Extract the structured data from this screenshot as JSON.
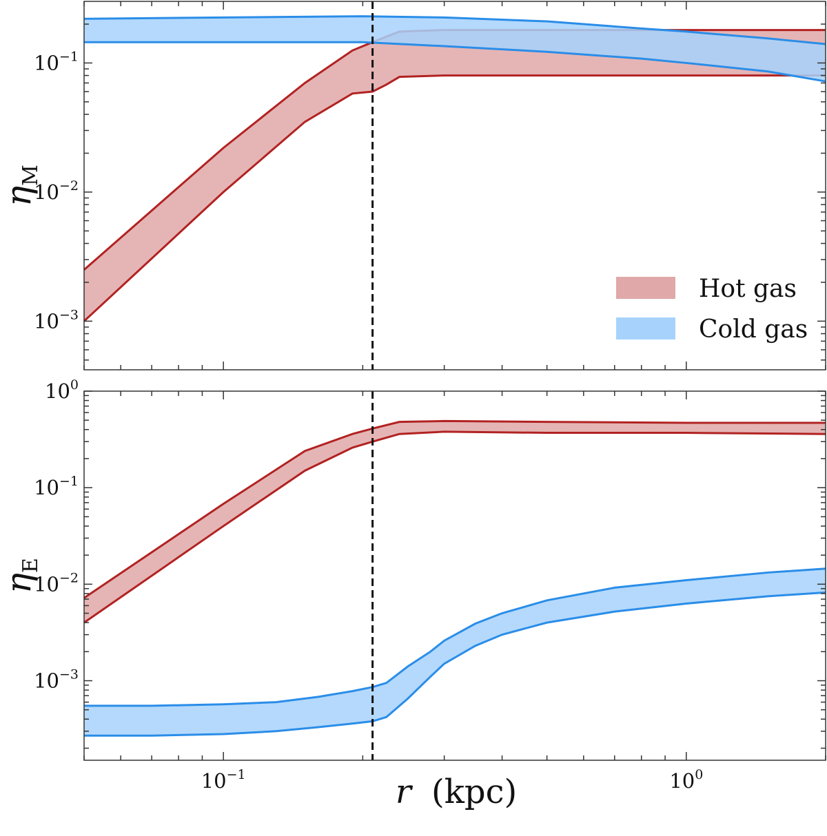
{
  "chart_data": [
    {
      "type": "area",
      "panel": "top",
      "ylabel": "η",
      "ylabel_sub": "M",
      "xscale": "log",
      "yscale": "log",
      "xlim": [
        0.05,
        2.0
      ],
      "ylim": [
        0.00042,
        0.3
      ],
      "yticks": [
        {
          "value": 0.1,
          "base": "10",
          "exp": "−1"
        },
        {
          "value": 0.01,
          "base": "10",
          "exp": "−2"
        },
        {
          "value": 0.001,
          "base": "10",
          "exp": "−3"
        }
      ],
      "vline": 0.21,
      "legend_location": "lower-right",
      "series": [
        {
          "name": "Hot gas",
          "fill": "#e0a8a8",
          "edge": "#b22222",
          "x": [
            0.05,
            0.1,
            0.15,
            0.19,
            0.21,
            0.225,
            0.24,
            0.3,
            0.5,
            1.0,
            2.0
          ],
          "lower": [
            0.001,
            0.01,
            0.035,
            0.058,
            0.06,
            0.068,
            0.078,
            0.08,
            0.08,
            0.08,
            0.08
          ],
          "upper": [
            0.0025,
            0.022,
            0.07,
            0.125,
            0.145,
            0.16,
            0.175,
            0.18,
            0.18,
            0.18,
            0.18
          ]
        },
        {
          "name": "Cold gas",
          "fill": "#a7d2fc",
          "edge": "#2a8de8",
          "x": [
            0.05,
            0.1,
            0.2,
            0.3,
            0.5,
            0.8,
            1.0,
            1.5,
            2.0
          ],
          "lower": [
            0.145,
            0.145,
            0.145,
            0.135,
            0.122,
            0.108,
            0.1,
            0.086,
            0.072
          ],
          "upper": [
            0.22,
            0.225,
            0.23,
            0.225,
            0.21,
            0.185,
            0.175,
            0.155,
            0.14
          ]
        }
      ]
    },
    {
      "type": "area",
      "panel": "bottom",
      "ylabel": "η",
      "ylabel_sub": "E",
      "xlabel_var": "r",
      "xlabel_unit": "(kpc)",
      "xscale": "log",
      "yscale": "log",
      "xlim": [
        0.05,
        2.0
      ],
      "ylim": [
        0.00015,
        1.0
      ],
      "yticks": [
        {
          "value": 1.0,
          "base": "10",
          "exp": "0"
        },
        {
          "value": 0.1,
          "base": "10",
          "exp": "−1"
        },
        {
          "value": 0.01,
          "base": "10",
          "exp": "−2"
        },
        {
          "value": 0.001,
          "base": "10",
          "exp": "−3"
        }
      ],
      "xticks": [
        {
          "value": 0.1,
          "base": "10",
          "exp": "−1"
        },
        {
          "value": 1.0,
          "base": "10",
          "exp": "0"
        }
      ],
      "vline": 0.21,
      "series": [
        {
          "name": "Hot gas",
          "fill": "#e0a8a8",
          "edge": "#b22222",
          "x": [
            0.05,
            0.1,
            0.15,
            0.19,
            0.21,
            0.24,
            0.3,
            0.5,
            1.0,
            2.0
          ],
          "lower": [
            0.004,
            0.04,
            0.15,
            0.26,
            0.3,
            0.36,
            0.38,
            0.37,
            0.37,
            0.36
          ],
          "upper": [
            0.0072,
            0.068,
            0.24,
            0.36,
            0.41,
            0.48,
            0.49,
            0.48,
            0.47,
            0.47
          ]
        },
        {
          "name": "Cold gas",
          "fill": "#a7d2fc",
          "edge": "#2a8de8",
          "x": [
            0.05,
            0.07,
            0.1,
            0.13,
            0.16,
            0.19,
            0.21,
            0.225,
            0.25,
            0.28,
            0.3,
            0.35,
            0.4,
            0.5,
            0.7,
            1.0,
            1.5,
            2.0
          ],
          "lower": [
            0.00027,
            0.00027,
            0.00028,
            0.0003,
            0.00033,
            0.00036,
            0.00038,
            0.00042,
            0.00065,
            0.0011,
            0.0015,
            0.0023,
            0.003,
            0.004,
            0.0052,
            0.0063,
            0.0075,
            0.0082
          ],
          "upper": [
            0.00055,
            0.00055,
            0.00057,
            0.0006,
            0.00068,
            0.00078,
            0.00086,
            0.00095,
            0.0014,
            0.002,
            0.0026,
            0.0039,
            0.005,
            0.0068,
            0.0092,
            0.011,
            0.0132,
            0.0145
          ]
        }
      ]
    }
  ]
}
